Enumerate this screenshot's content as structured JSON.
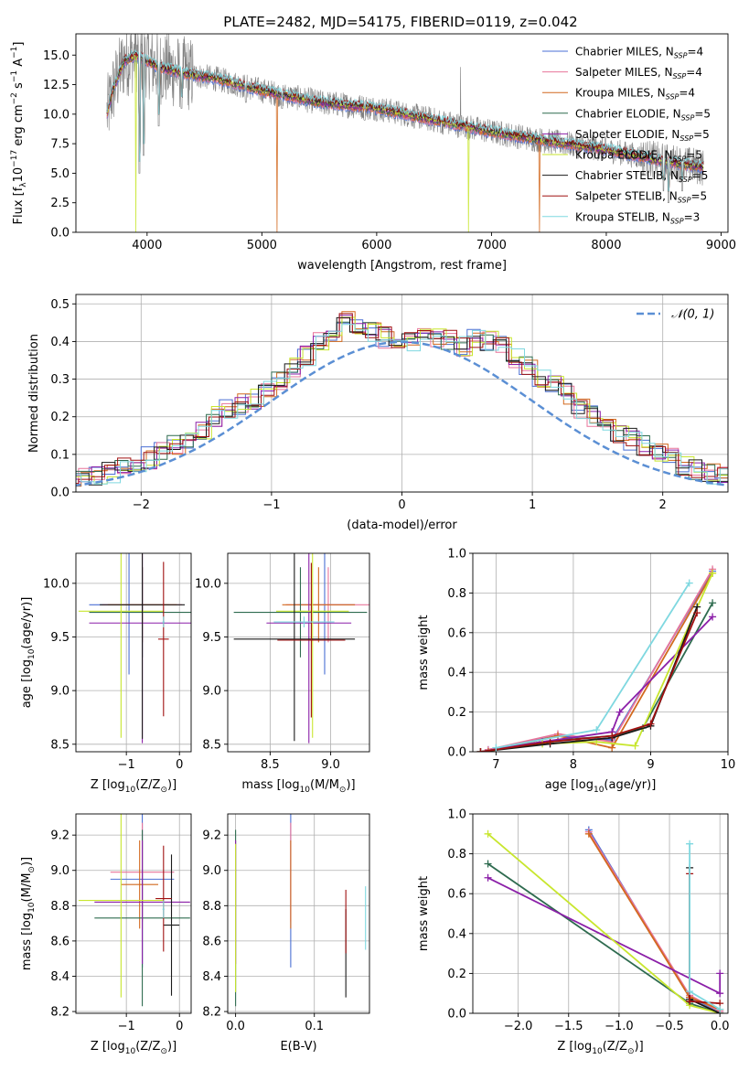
{
  "figure": {
    "title": "PLATE=2482, MJD=54175, FIBERID=0119, z=0.042"
  },
  "chart_data": [
    {
      "id": "spectrum",
      "type": "line",
      "xlabel": "wavelength [Angstrom, rest frame]",
      "ylabel_parts": [
        "Flux [f",
        "λ",
        "10",
        "−17",
        " erg cm",
        "−2",
        " s",
        "−1",
        " A",
        "−1",
        "]"
      ],
      "xlim": [
        3380,
        9060
      ],
      "ylim": [
        0,
        16.8
      ],
      "xticks": [
        4000,
        5000,
        6000,
        7000,
        8000,
        9000
      ],
      "yticks": [
        0.0,
        2.5,
        5.0,
        7.5,
        10.0,
        12.5,
        15.0
      ],
      "grid": false,
      "legend_placement": "top-right",
      "observed": {
        "color": "#808080",
        "x_range": [
          3650,
          8850
        ],
        "anchor_points": [
          [
            3650,
            10.0
          ],
          [
            3700,
            12.0
          ],
          [
            3800,
            14.5
          ],
          [
            3900,
            15.0
          ],
          [
            4000,
            14.5
          ],
          [
            4100,
            14.0
          ],
          [
            4300,
            13.5
          ],
          [
            4600,
            13.0
          ],
          [
            5000,
            12.0
          ],
          [
            5500,
            11.0
          ],
          [
            6000,
            10.5
          ],
          [
            6500,
            9.5
          ],
          [
            7000,
            8.5
          ],
          [
            7500,
            7.7
          ],
          [
            8000,
            7.0
          ],
          [
            8500,
            6.0
          ],
          [
            8850,
            5.5
          ]
        ]
      },
      "absorption_dips": [
        [
          3934,
          5.0
        ],
        [
          3969,
          6.5
        ],
        [
          4102,
          9.0
        ],
        [
          4300,
          10.5
        ],
        [
          4861,
          11.0
        ],
        [
          5175,
          10.5
        ],
        [
          5895,
          9.5
        ],
        [
          6563,
          8.5
        ],
        [
          8498,
          3.5
        ],
        [
          8542,
          2.5
        ],
        [
          8662,
          3.5
        ]
      ],
      "spikes": [
        [
          6731,
          14.0
        ],
        [
          5130,
          0.0
        ],
        [
          3900,
          0.0
        ],
        [
          6800,
          0.0
        ],
        [
          7420,
          0.0
        ]
      ],
      "series": [
        {
          "name_parts": [
            "Chabrier MILES, N",
            "SSP",
            "=4"
          ],
          "color": "#4a6fd4"
        },
        {
          "name_parts": [
            "Salpeter MILES, N",
            "SSP",
            "=4"
          ],
          "color": "#e8749a"
        },
        {
          "name_parts": [
            "Kroupa MILES, N",
            "SSP",
            "=4"
          ],
          "color": "#d2691e"
        },
        {
          "name_parts": [
            "Chabrier ELODIE, N",
            "SSP",
            "=5"
          ],
          "color": "#2e6b4f"
        },
        {
          "name_parts": [
            "Salpeter ELODIE, N",
            "SSP",
            "=5"
          ],
          "color": "#8b1fa8"
        },
        {
          "name_parts": [
            "Kroupa ELODIE, N",
            "SSP",
            "=5"
          ],
          "color": "#c8e62e"
        },
        {
          "name_parts": [
            "Chabrier STELIB, N",
            "SSP",
            "=5"
          ],
          "color": "#1a1a1a"
        },
        {
          "name_parts": [
            "Salpeter STELIB, N",
            "SSP",
            "=5"
          ],
          "color": "#a01010"
        },
        {
          "name_parts": [
            "Kroupa STELIB, N",
            "SSP",
            "=3"
          ],
          "color": "#7fd8e0"
        }
      ]
    },
    {
      "id": "residuals",
      "type": "histogram",
      "xlabel": "(data-model)/error",
      "ylabel": "Normed distribution",
      "xlim": [
        -2.5,
        2.5
      ],
      "ylim": [
        0,
        0.525
      ],
      "xticks": [
        -2,
        -1,
        0,
        1,
        2
      ],
      "xtick_labels": [
        "−2",
        "−1",
        "0",
        "1",
        "2"
      ],
      "yticks": [
        0.0,
        0.1,
        0.2,
        0.3,
        0.4,
        0.5
      ],
      "grid": true,
      "legend_placement": "top-right",
      "reference": {
        "name": "𝒩(0, 1)",
        "color": "#5b8fd4",
        "dashed": true,
        "mean": 0,
        "sd": 1
      },
      "bin_width": 0.1,
      "profile": [
        0.02,
        0.025,
        0.028,
        0.03,
        0.035,
        0.04,
        0.05,
        0.065,
        0.075,
        0.09,
        0.11,
        0.12,
        0.14,
        0.16,
        0.2,
        0.22,
        0.235,
        0.25,
        0.27,
        0.3,
        0.33,
        0.36,
        0.4,
        0.43,
        0.47,
        0.45,
        0.43,
        0.41,
        0.39,
        0.4,
        0.42,
        0.41,
        0.4,
        0.39,
        0.41,
        0.4,
        0.39,
        0.36,
        0.33,
        0.3,
        0.28,
        0.26,
        0.22,
        0.2,
        0.18,
        0.16,
        0.14,
        0.12,
        0.11,
        0.09,
        0.075,
        0.06,
        0.05,
        0.04,
        0.035,
        0.03,
        0.025,
        0.02
      ]
    },
    {
      "id": "age-vs-Z",
      "type": "errorbar",
      "xlabel_parts": [
        "Z [log",
        "10",
        "(Z/Z",
        "⊙",
        ")]"
      ],
      "ylabel_parts": [
        "age  [log",
        "10",
        "(age/yr)]"
      ],
      "xlim": [
        -1.95,
        0.22
      ],
      "ylim": [
        8.43,
        10.28
      ],
      "xticks": [
        -1,
        0
      ],
      "xtick_labels": [
        "−1",
        "0"
      ],
      "yticks": [
        8.5,
        9.0,
        9.5,
        10.0
      ],
      "grid": true,
      "points": [
        {
          "color": "#4a6fd4",
          "x": -0.95,
          "xerr": 0.75,
          "y": 9.8,
          "yerr": 0.65
        },
        {
          "color": "#e8749a",
          "x": -0.7,
          "xerr": 0.75,
          "y": 9.8,
          "yerr": 0.35
        },
        {
          "color": "#d2691e",
          "x": -0.7,
          "xerr": 0.65,
          "y": 9.8,
          "yerr": 0.35
        },
        {
          "color": "#2e6b4f",
          "x": -0.7,
          "xerr": 1.0,
          "y": 9.73,
          "yerr": 0.42
        },
        {
          "color": "#8b1fa8",
          "x": -0.7,
          "xerr": 1.0,
          "y": 9.63,
          "yerr": 1.12
        },
        {
          "color": "#c8e62e",
          "x": -1.1,
          "xerr": 0.8,
          "y": 9.74,
          "yerr": 1.18
        },
        {
          "color": "#1a1a1a",
          "x": -0.7,
          "xerr": 0.8,
          "y": 9.8,
          "yerr": 1.25
        },
        {
          "color": "#a01010",
          "x": -0.3,
          "xerr": 0.1,
          "y": 9.48,
          "yerr": 0.72
        },
        {
          "color": "#7fd8e0",
          "x": -0.3,
          "xerr": 0.02,
          "y": 9.64,
          "yerr": 0.05
        }
      ]
    },
    {
      "id": "age-vs-mass",
      "type": "errorbar",
      "xlabel_parts": [
        "mass [log",
        "10",
        "(M/M",
        "⊙",
        ")]"
      ],
      "ylabel_parts": [],
      "xlim": [
        8.15,
        9.32
      ],
      "ylim": [
        8.43,
        10.28
      ],
      "xticks": [
        8.5,
        9.0
      ],
      "xtick_labels": [
        "8.5",
        "9.0"
      ],
      "yticks": [
        8.5,
        9.0,
        9.5,
        10.0
      ],
      "grid": true,
      "points": [
        {
          "color": "#4a6fd4",
          "x": 8.95,
          "xerr": 0.25,
          "y": 9.8,
          "yerr": 0.65
        },
        {
          "color": "#e8749a",
          "x": 8.98,
          "xerr": 0.35,
          "y": 9.8,
          "yerr": 0.35
        },
        {
          "color": "#d2691e",
          "x": 8.9,
          "xerr": 0.3,
          "y": 9.8,
          "yerr": 0.35
        },
        {
          "color": "#2e6b4f",
          "x": 8.75,
          "xerr": 0.55,
          "y": 9.73,
          "yerr": 0.42
        },
        {
          "color": "#8b1fa8",
          "x": 8.82,
          "xerr": 0.35,
          "y": 9.63,
          "yerr": 1.12
        },
        {
          "color": "#c8e62e",
          "x": 8.85,
          "xerr": 0.3,
          "y": 9.74,
          "yerr": 1.18
        },
        {
          "color": "#1a1a1a",
          "x": 8.7,
          "xerr": 0.5,
          "y": 9.48,
          "yerr": 0.95
        },
        {
          "color": "#a01010",
          "x": 8.84,
          "xerr": 0.28,
          "y": 9.47,
          "yerr": 0.72
        },
        {
          "color": "#7fd8e0",
          "x": 8.78,
          "xerr": 0.25,
          "y": 9.64,
          "yerr": 0.05
        }
      ]
    },
    {
      "id": "massweight-vs-age",
      "type": "line",
      "xlabel_parts": [
        "age  [log",
        "10",
        "(age/yr)]"
      ],
      "ylabel": "mass weight",
      "xlim": [
        6.7,
        10.0
      ],
      "ylim": [
        0,
        1.0
      ],
      "xticks": [
        7,
        8,
        9,
        10
      ],
      "xtick_labels": [
        "7",
        "8",
        "9",
        "10"
      ],
      "yticks": [
        0.0,
        0.2,
        0.4,
        0.6,
        0.8,
        1.0
      ],
      "grid": true,
      "series": [
        {
          "color": "#4a6fd4",
          "x": [
            6.9,
            7.8,
            8.5,
            9.8
          ],
          "y": [
            0.01,
            0.08,
            0.06,
            0.91
          ]
        },
        {
          "color": "#e8749a",
          "x": [
            6.9,
            7.8,
            8.5,
            9.8
          ],
          "y": [
            0.01,
            0.09,
            0.05,
            0.92
          ]
        },
        {
          "color": "#d2691e",
          "x": [
            6.9,
            7.8,
            8.5,
            9.8
          ],
          "y": [
            0.0,
            0.08,
            0.02,
            0.9
          ]
        },
        {
          "color": "#2e6b4f",
          "x": [
            6.8,
            7.6,
            8.5,
            8.9,
            9.8
          ],
          "y": [
            0.0,
            0.05,
            0.08,
            0.12,
            0.75
          ]
        },
        {
          "color": "#8b1fa8",
          "x": [
            6.8,
            7.6,
            8.5,
            8.6,
            9.8
          ],
          "y": [
            0.0,
            0.05,
            0.1,
            0.2,
            0.68
          ]
        },
        {
          "color": "#c8e62e",
          "x": [
            6.8,
            7.6,
            8.3,
            8.8,
            9.8
          ],
          "y": [
            0.0,
            0.04,
            0.05,
            0.03,
            0.9
          ]
        },
        {
          "color": "#1a1a1a",
          "x": [
            6.8,
            7.7,
            8.5,
            9.0,
            9.6
          ],
          "y": [
            0.0,
            0.04,
            0.07,
            0.13,
            0.73
          ]
        },
        {
          "color": "#a01010",
          "x": [
            6.8,
            7.7,
            8.5,
            9.0,
            9.6
          ],
          "y": [
            0.0,
            0.05,
            0.08,
            0.14,
            0.7
          ]
        },
        {
          "color": "#7fd8e0",
          "x": [
            7.0,
            8.3,
            9.5
          ],
          "y": [
            0.02,
            0.11,
            0.85
          ]
        }
      ]
    },
    {
      "id": "mass-vs-Z",
      "type": "errorbar",
      "xlabel_parts": [
        "Z [log",
        "10",
        "(Z/Z",
        "⊙",
        ")]"
      ],
      "ylabel_parts": [
        "mass [log",
        "10",
        "(M/M",
        "⊙",
        ")]"
      ],
      "xlim": [
        -1.95,
        0.22
      ],
      "ylim": [
        8.19,
        9.32
      ],
      "xticks": [
        -1,
        0
      ],
      "xtick_labels": [
        "−1",
        "0"
      ],
      "yticks": [
        8.2,
        8.4,
        8.6,
        8.8,
        9.0,
        9.2
      ],
      "grid": true,
      "points": [
        {
          "color": "#4a6fd4",
          "x": -0.7,
          "xerr": 0.6,
          "y": 8.95,
          "yerr": 0.5
        },
        {
          "color": "#e8749a",
          "x": -0.7,
          "xerr": 0.6,
          "y": 8.99,
          "yerr": 0.28
        },
        {
          "color": "#d2691e",
          "x": -0.75,
          "xerr": 0.35,
          "y": 8.92,
          "yerr": 0.25
        },
        {
          "color": "#2e6b4f",
          "x": -0.7,
          "xerr": 0.9,
          "y": 8.73,
          "yerr": 0.5
        },
        {
          "color": "#8b1fa8",
          "x": -0.7,
          "xerr": 0.9,
          "y": 8.82,
          "yerr": 0.35
        },
        {
          "color": "#c8e62e",
          "x": -1.1,
          "xerr": 0.8,
          "y": 8.83,
          "yerr": 0.55
        },
        {
          "color": "#1a1a1a",
          "x": -0.15,
          "xerr": 0.15,
          "y": 8.69,
          "yerr": 0.4
        },
        {
          "color": "#a01010",
          "x": -0.3,
          "xerr": 0.15,
          "y": 8.84,
          "yerr": 0.3
        },
        {
          "color": "#7fd8e0",
          "x": -0.3,
          "xerr": 0.02,
          "y": 8.78,
          "yerr": 0.05
        }
      ]
    },
    {
      "id": "mass-vs-ebv",
      "type": "errorbar",
      "xlabel": "E(B-V)",
      "ylabel_parts": [],
      "xlim": [
        -0.01,
        0.17
      ],
      "ylim": [
        8.19,
        9.32
      ],
      "xticks": [
        0.0,
        0.1
      ],
      "xtick_labels": [
        "0.0",
        "0.1"
      ],
      "yticks": [
        8.2,
        8.4,
        8.6,
        8.8,
        9.0,
        9.2
      ],
      "grid": true,
      "points": [
        {
          "color": "#4a6fd4",
          "x": 0.07,
          "xerr": 0,
          "y": 8.95,
          "yerr": 0.5
        },
        {
          "color": "#e8749a",
          "x": 0.07,
          "xerr": 0,
          "y": 8.99,
          "yerr": 0.28
        },
        {
          "color": "#d2691e",
          "x": 0.07,
          "xerr": 0,
          "y": 8.92,
          "yerr": 0.25
        },
        {
          "color": "#2e6b4f",
          "x": 0.0,
          "xerr": 0,
          "y": 8.73,
          "yerr": 0.5
        },
        {
          "color": "#8b1fa8",
          "x": 0.0,
          "xerr": 0,
          "y": 8.82,
          "yerr": 0.35
        },
        {
          "color": "#c8e62e",
          "x": 0.0,
          "xerr": 0,
          "y": 8.73,
          "yerr": 0.42
        },
        {
          "color": "#1a1a1a",
          "x": 0.14,
          "xerr": 0,
          "y": 8.53,
          "yerr": 0.25
        },
        {
          "color": "#a01010",
          "x": 0.14,
          "xerr": 0,
          "y": 8.71,
          "yerr": 0.18
        },
        {
          "color": "#7fd8e0",
          "x": 0.165,
          "xerr": 0,
          "y": 8.73,
          "yerr": 0.18
        }
      ]
    },
    {
      "id": "massweight-vs-Z",
      "type": "line",
      "xlabel_parts": [
        "Z [log",
        "10",
        "(Z/Z",
        "⊙",
        ")]"
      ],
      "ylabel": "mass weight",
      "xlim": [
        -2.45,
        0.08
      ],
      "ylim": [
        0,
        1.0
      ],
      "xticks": [
        -2.0,
        -1.5,
        -1.0,
        -0.5,
        0.0
      ],
      "xtick_labels": [
        "−2.0",
        "−1.5",
        "−1.0",
        "−0.5",
        "0.0"
      ],
      "yticks": [
        0.0,
        0.2,
        0.4,
        0.6,
        0.8,
        1.0
      ],
      "grid": true,
      "series": [
        {
          "color": "#4a6fd4",
          "x": [
            -1.3,
            -0.3,
            0.0
          ],
          "y": [
            0.92,
            0.08,
            0.01
          ]
        },
        {
          "color": "#e8749a",
          "x": [
            -1.3,
            -0.3,
            0.0
          ],
          "y": [
            0.91,
            0.09,
            0.01
          ]
        },
        {
          "color": "#d2691e",
          "x": [
            -1.3,
            -0.3,
            0.0
          ],
          "y": [
            0.9,
            0.08,
            0.02
          ]
        },
        {
          "color": "#2e6b4f",
          "x": [
            -2.3,
            -0.3,
            0.0
          ],
          "y": [
            0.75,
            0.05,
            0.0
          ]
        },
        {
          "color": "#8b1fa8",
          "x": [
            -2.3,
            0.0,
            0.0
          ],
          "y": [
            0.68,
            0.1,
            0.2
          ]
        },
        {
          "color": "#c8e62e",
          "x": [
            -2.3,
            -0.3,
            0.0
          ],
          "y": [
            0.9,
            0.04,
            0.0
          ]
        },
        {
          "color": "#1a1a1a",
          "x": [
            -0.3,
            -0.3,
            0.0
          ],
          "y": [
            0.73,
            0.07,
            0.0
          ]
        },
        {
          "color": "#a01010",
          "x": [
            -0.3,
            -0.3,
            0.0
          ],
          "y": [
            0.7,
            0.06,
            0.05
          ]
        },
        {
          "color": "#7fd8e0",
          "x": [
            -0.3,
            -0.3,
            0.0
          ],
          "y": [
            0.85,
            0.11,
            0.02
          ]
        }
      ]
    }
  ]
}
